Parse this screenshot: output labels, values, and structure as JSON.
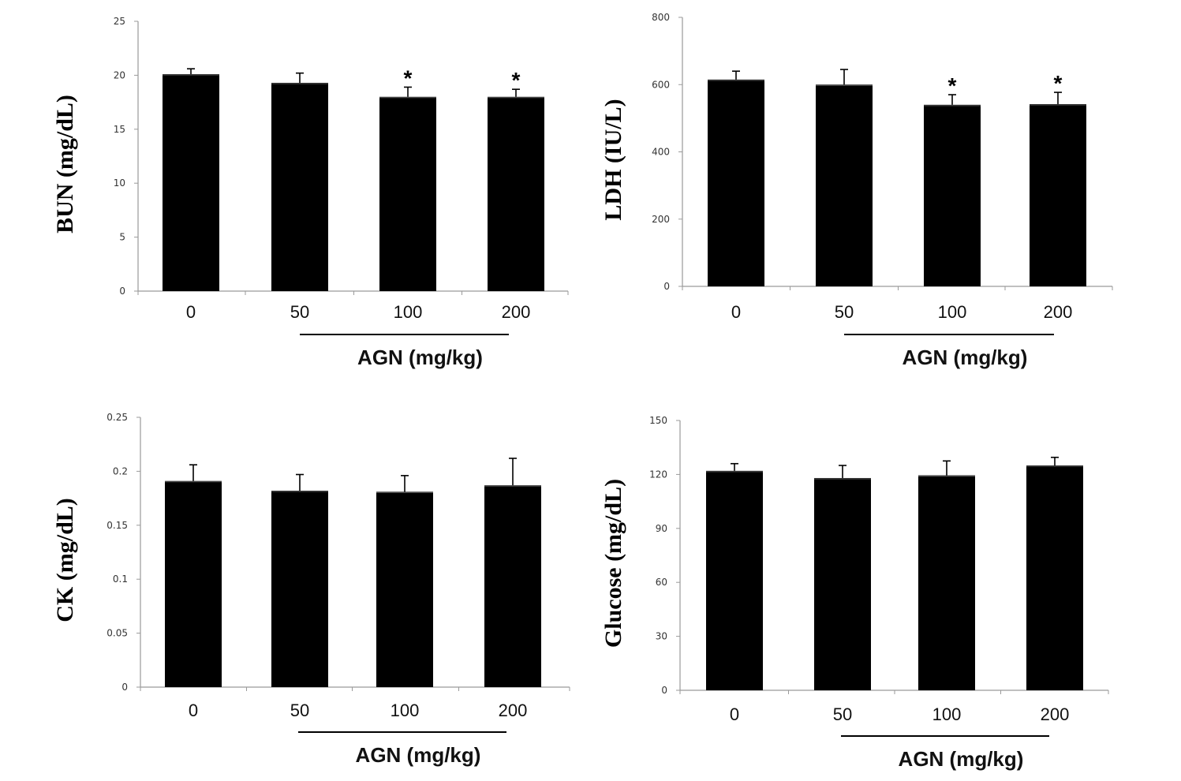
{
  "chart_data": [
    {
      "type": "bar",
      "ylabel": "BUN (mg/dL)",
      "xlabel": "AGN (mg/kg)",
      "categories": [
        "0",
        "50",
        "100",
        "200"
      ],
      "values": [
        20.1,
        19.3,
        18.0,
        18.0
      ],
      "errors": [
        0.5,
        0.9,
        0.9,
        0.7
      ],
      "significance": [
        "",
        "",
        "*",
        "*"
      ],
      "yticks": [
        "0",
        "5",
        "10",
        "15",
        "20",
        "25"
      ],
      "ylim": [
        0,
        25
      ],
      "bar_color": "#000000"
    },
    {
      "type": "bar",
      "ylabel": "LDH (IU/L)",
      "xlabel": "AGN (mg/kg)",
      "categories": [
        "0",
        "50",
        "100",
        "200"
      ],
      "values": [
        615,
        600,
        540,
        542
      ],
      "errors": [
        25,
        45,
        30,
        35
      ],
      "significance": [
        "",
        "",
        "*",
        "*"
      ],
      "yticks": [
        "0",
        "200",
        "400",
        "600",
        "800"
      ],
      "ylim": [
        0,
        800
      ],
      "bar_color": "#000000"
    },
    {
      "type": "bar",
      "ylabel": "CK (mg/dL)",
      "xlabel": "AGN (mg/kg)",
      "categories": [
        "0",
        "50",
        "100",
        "200"
      ],
      "values": [
        0.191,
        0.182,
        0.181,
        0.187
      ],
      "errors": [
        0.015,
        0.015,
        0.015,
        0.025
      ],
      "significance": [
        "",
        "",
        "",
        ""
      ],
      "yticks": [
        "0",
        "0.05",
        "0.1",
        "0.15",
        "0.2",
        "0.25"
      ],
      "ylim": [
        0,
        0.25
      ],
      "bar_color": "#000000"
    },
    {
      "type": "bar",
      "ylabel": "Glucose (mg/dL)",
      "xlabel": "AGN (mg/kg)",
      "categories": [
        "0",
        "50",
        "100",
        "200"
      ],
      "values": [
        122,
        118,
        119.5,
        125
      ],
      "errors": [
        4,
        7,
        8,
        4.5
      ],
      "significance": [
        "",
        "",
        "",
        ""
      ],
      "yticks": [
        "0",
        "30",
        "60",
        "90",
        "120",
        "150"
      ],
      "ylim": [
        0,
        150
      ],
      "bar_color": "#000000"
    }
  ]
}
